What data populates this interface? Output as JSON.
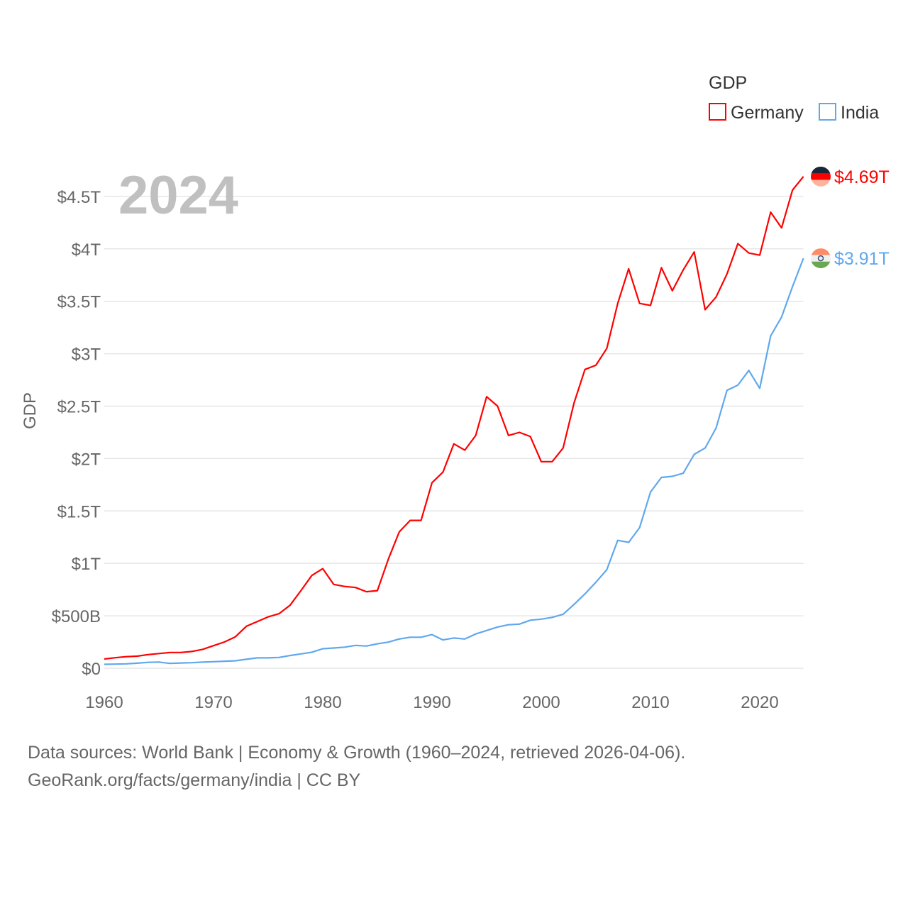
{
  "chart_data": {
    "type": "line",
    "title": "",
    "legend_title": "GDP",
    "legend_position": "top-right",
    "ylabel": "GDP",
    "xlabel": "",
    "year_label": "2024",
    "ylim": [
      0,
      4.75
    ],
    "xlim": [
      1960,
      2024
    ],
    "y_ticks": [
      {
        "value": 0,
        "label": "$0"
      },
      {
        "value": 0.5,
        "label": "$500B"
      },
      {
        "value": 1,
        "label": "$1T"
      },
      {
        "value": 1.5,
        "label": "$1.5T"
      },
      {
        "value": 2,
        "label": "$2T"
      },
      {
        "value": 2.5,
        "label": "$2.5T"
      },
      {
        "value": 3,
        "label": "$3T"
      },
      {
        "value": 3.5,
        "label": "$3.5T"
      },
      {
        "value": 4,
        "label": "$4T"
      },
      {
        "value": 4.5,
        "label": "$4.5T"
      }
    ],
    "x_ticks": [
      "1960",
      "1970",
      "1980",
      "1990",
      "2000",
      "2010",
      "2020"
    ],
    "units": "trillion USD",
    "x_start": 1960,
    "series": [
      {
        "name": "Germany",
        "color": "#ff0000",
        "end_label": "$4.69T",
        "values": [
          0.088,
          0.1,
          0.11,
          0.115,
          0.13,
          0.14,
          0.15,
          0.15,
          0.16,
          0.18,
          0.215,
          0.25,
          0.3,
          0.4,
          0.445,
          0.49,
          0.52,
          0.6,
          0.74,
          0.885,
          0.95,
          0.8,
          0.78,
          0.77,
          0.73,
          0.74,
          1.04,
          1.3,
          1.41,
          1.41,
          1.77,
          1.87,
          2.14,
          2.08,
          2.22,
          2.59,
          2.5,
          2.22,
          2.25,
          2.21,
          1.97,
          1.97,
          2.1,
          2.53,
          2.85,
          2.89,
          3.05,
          3.48,
          3.81,
          3.48,
          3.46,
          3.82,
          3.6,
          3.8,
          3.97,
          3.42,
          3.54,
          3.76,
          4.05,
          3.96,
          3.94,
          4.35,
          4.2,
          4.56,
          4.69
        ]
      },
      {
        "name": "India",
        "color": "#5fa8ee",
        "end_label": "$3.91T",
        "values": [
          0.037,
          0.039,
          0.042,
          0.048,
          0.056,
          0.059,
          0.046,
          0.05,
          0.053,
          0.058,
          0.062,
          0.067,
          0.071,
          0.085,
          0.099,
          0.099,
          0.103,
          0.121,
          0.137,
          0.153,
          0.186,
          0.193,
          0.201,
          0.218,
          0.212,
          0.233,
          0.249,
          0.279,
          0.296,
          0.296,
          0.321,
          0.27,
          0.288,
          0.279,
          0.327,
          0.36,
          0.393,
          0.415,
          0.421,
          0.458,
          0.468,
          0.485,
          0.515,
          0.608,
          0.709,
          0.82,
          0.94,
          1.22,
          1.2,
          1.34,
          1.68,
          1.82,
          1.83,
          1.86,
          2.04,
          2.1,
          2.29,
          2.65,
          2.7,
          2.84,
          2.67,
          3.17,
          3.35,
          3.64,
          3.91
        ]
      }
    ]
  },
  "footer": {
    "line1": "Data sources: World Bank | Economy & Growth (1960–2024, retrieved 2026-04-06).",
    "line2": "GeoRank.org/facts/germany/india | CC BY"
  }
}
